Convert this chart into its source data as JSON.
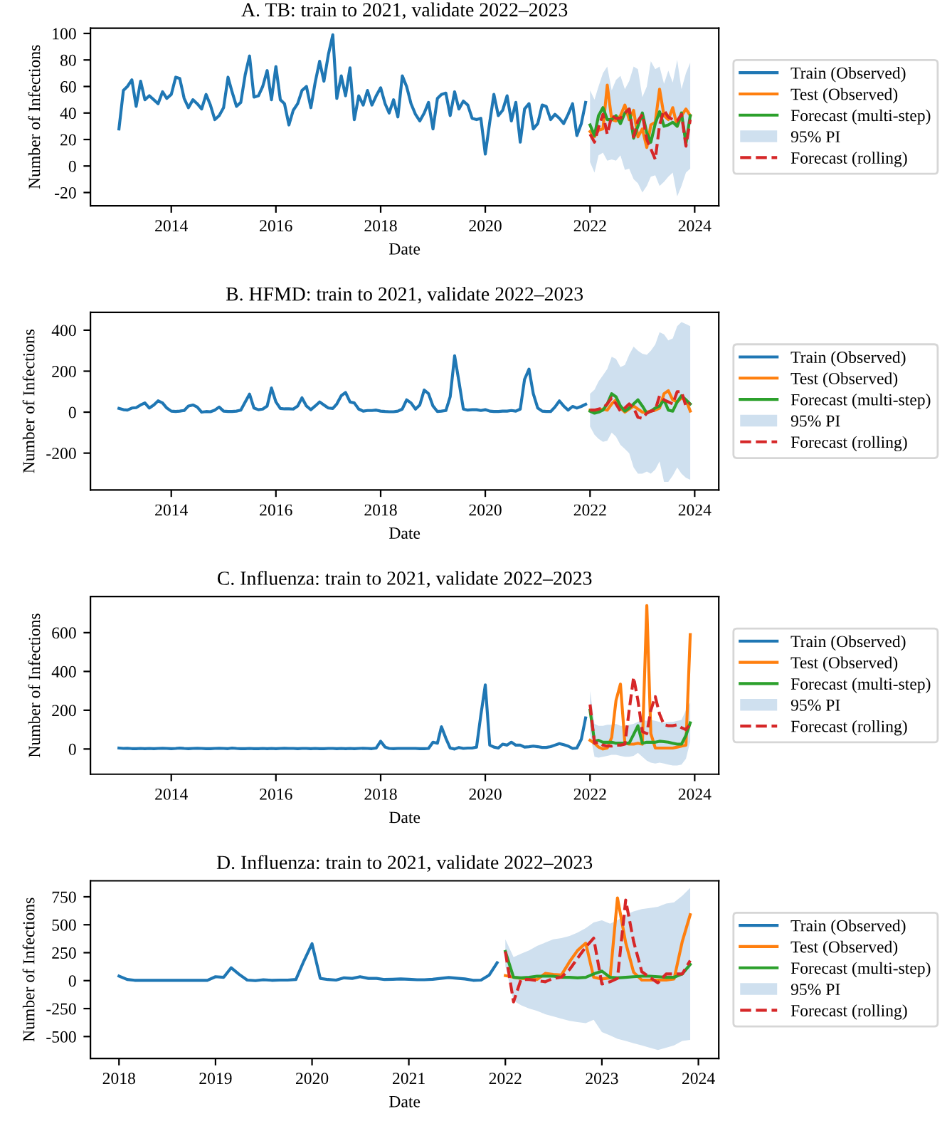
{
  "chart_data": [
    {
      "type": "line",
      "title": "A. TB: train to 2021, validate 2022–2023",
      "xlabel": "Date",
      "ylabel": "Number of Infections",
      "legend": "right",
      "grid": false,
      "xlim": [
        "2012-06-16",
        "2024-06-17"
      ],
      "xticks": [
        "2014",
        "2016",
        "2018",
        "2020",
        "2022",
        "2024"
      ],
      "ylim": [
        -30,
        104
      ],
      "yticks": [
        -20,
        0,
        20,
        40,
        60,
        80,
        100
      ],
      "x": [
        "2022-01",
        "2022-02",
        "2022-03",
        "2022-04",
        "2022-05",
        "2022-06",
        "2022-07",
        "2022-08",
        "2022-09",
        "2022-10",
        "2022-11",
        "2022-12",
        "2023-01",
        "2023-02",
        "2023-03",
        "2023-04",
        "2023-05",
        "2023-06",
        "2023-07",
        "2023-08",
        "2023-09",
        "2023-10",
        "2023-11",
        "2023-12"
      ],
      "series": [
        {
          "name": "Train (Observed)",
          "color": "#1f77b4",
          "x": [
            "2013-01",
            "2013-02",
            "2013-03",
            "2013-04",
            "2013-05",
            "2013-06",
            "2013-07",
            "2013-08",
            "2013-09",
            "2013-10",
            "2013-11",
            "2013-12",
            "2014-01",
            "2014-02",
            "2014-03",
            "2014-04",
            "2014-05",
            "2014-06",
            "2014-07",
            "2014-08",
            "2014-09",
            "2014-10",
            "2014-11",
            "2014-12",
            "2015-01",
            "2015-02",
            "2015-03",
            "2015-04",
            "2015-05",
            "2015-06",
            "2015-07",
            "2015-08",
            "2015-09",
            "2015-10",
            "2015-11",
            "2015-12",
            "2016-01",
            "2016-02",
            "2016-03",
            "2016-04",
            "2016-05",
            "2016-06",
            "2016-07",
            "2016-08",
            "2016-09",
            "2016-10",
            "2016-11",
            "2016-12",
            "2017-01",
            "2017-02",
            "2017-03",
            "2017-04",
            "2017-05",
            "2017-06",
            "2017-07",
            "2017-08",
            "2017-09",
            "2017-10",
            "2017-11",
            "2017-12",
            "2018-01",
            "2018-02",
            "2018-03",
            "2018-04",
            "2018-05",
            "2018-06",
            "2018-07",
            "2018-08",
            "2018-09",
            "2018-10",
            "2018-11",
            "2018-12",
            "2019-01",
            "2019-02",
            "2019-03",
            "2019-04",
            "2019-05",
            "2019-06",
            "2019-07",
            "2019-08",
            "2019-09",
            "2019-10",
            "2019-11",
            "2019-12",
            "2020-01",
            "2020-02",
            "2020-03",
            "2020-04",
            "2020-05",
            "2020-06",
            "2020-07",
            "2020-08",
            "2020-09",
            "2020-10",
            "2020-11",
            "2020-12",
            "2021-01",
            "2021-02",
            "2021-03",
            "2021-04",
            "2021-05",
            "2021-06",
            "2021-07",
            "2021-08",
            "2021-09",
            "2021-10",
            "2021-11",
            "2021-12"
          ],
          "values": [
            28,
            57,
            60,
            65,
            45,
            64,
            50,
            53,
            50,
            47,
            56,
            51,
            54,
            67,
            66,
            51,
            44,
            50,
            47,
            43,
            54,
            46,
            35,
            38,
            44,
            67,
            56,
            45,
            48,
            69,
            83,
            52,
            53,
            60,
            72,
            50,
            75,
            50,
            47,
            31,
            42,
            47,
            57,
            60,
            44,
            63,
            79,
            64,
            84,
            99,
            51,
            68,
            53,
            74,
            35,
            53,
            46,
            57,
            46,
            53,
            59,
            47,
            40,
            50,
            37,
            68,
            60,
            47,
            39,
            34,
            40,
            48,
            28,
            51,
            54,
            55,
            38,
            56,
            43,
            49,
            46,
            36,
            35,
            36,
            9,
            33,
            54,
            38,
            42,
            53,
            34,
            48,
            18,
            43,
            47,
            28,
            32,
            46,
            45,
            35,
            39,
            36,
            32,
            39,
            47,
            23,
            32,
            48
          ]
        },
        {
          "name": "Test (Observed)",
          "color": "#ff7f0e",
          "values": [
            26,
            22,
            27,
            28,
            61,
            35,
            34,
            38,
            46,
            35,
            42,
            22,
            28,
            14,
            31,
            33,
            58,
            38,
            35,
            44,
            30,
            38,
            43,
            38
          ]
        },
        {
          "name": "Forecast (multi-step)",
          "color": "#2ca02c",
          "values": [
            31,
            23,
            38,
            44,
            35,
            35,
            38,
            32,
            40,
            43,
            21,
            30,
            40,
            25,
            18,
            32,
            41,
            30,
            31,
            33,
            30,
            40,
            17,
            38
          ]
        },
        {
          "name": "95% PI",
          "type": "area",
          "color": "#cfe0ef",
          "values": [
            null,
            null,
            null,
            null,
            null,
            null,
            null,
            null,
            null,
            null,
            null,
            null,
            null,
            null,
            null,
            null,
            null,
            null,
            null,
            null,
            null,
            null,
            null,
            null
          ],
          "lower": [
            3,
            -5,
            8,
            10,
            4,
            5,
            4,
            8,
            -3,
            -2,
            -10,
            -13,
            -20,
            -15,
            -8,
            -7,
            -15,
            -12,
            -8,
            -5,
            -23,
            -15,
            -5,
            -2
          ],
          "upper": [
            57,
            50,
            60,
            70,
            75,
            57,
            65,
            68,
            58,
            64,
            75,
            73,
            52,
            60,
            79,
            73,
            75,
            62,
            72,
            63,
            80,
            58,
            70,
            78
          ]
        },
        {
          "name": "Forecast (rolling)",
          "color": "#d62728",
          "line_style": "dashed",
          "values": [
            24,
            18,
            29,
            39,
            24,
            38,
            36,
            36,
            40,
            43,
            22,
            34,
            39,
            20,
            13,
            5,
            31,
            42,
            37,
            35,
            34,
            39,
            15,
            35
          ]
        }
      ]
    },
    {
      "type": "line",
      "title": "B. HFMD: train to 2021, validate 2022–2023",
      "xlabel": "Date",
      "ylabel": "Number of Infections",
      "legend": "right",
      "grid": false,
      "xlim": [
        "2012-06-16",
        "2024-06-17"
      ],
      "xticks": [
        "2014",
        "2016",
        "2018",
        "2020",
        "2022",
        "2024"
      ],
      "ylim": [
        -380,
        487
      ],
      "yticks": [
        -200,
        0,
        200,
        400
      ],
      "x": [
        "2022-01",
        "2022-02",
        "2022-03",
        "2022-04",
        "2022-05",
        "2022-06",
        "2022-07",
        "2022-08",
        "2022-09",
        "2022-10",
        "2022-11",
        "2022-12",
        "2023-01",
        "2023-02",
        "2023-03",
        "2023-04",
        "2023-05",
        "2023-06",
        "2023-07",
        "2023-08",
        "2023-09",
        "2023-10",
        "2023-11",
        "2023-12"
      ],
      "series": [
        {
          "name": "Train (Observed)",
          "color": "#1f77b4",
          "x": [
            "2013-01",
            "2013-02",
            "2013-03",
            "2013-04",
            "2013-05",
            "2013-06",
            "2013-07",
            "2013-08",
            "2013-09",
            "2013-10",
            "2013-11",
            "2013-12",
            "2014-01",
            "2014-02",
            "2014-03",
            "2014-04",
            "2014-05",
            "2014-06",
            "2014-07",
            "2014-08",
            "2014-09",
            "2014-10",
            "2014-11",
            "2014-12",
            "2015-01",
            "2015-02",
            "2015-03",
            "2015-04",
            "2015-05",
            "2015-06",
            "2015-07",
            "2015-08",
            "2015-09",
            "2015-10",
            "2015-11",
            "2015-12",
            "2016-01",
            "2016-02",
            "2016-03",
            "2016-04",
            "2016-05",
            "2016-06",
            "2016-07",
            "2016-08",
            "2016-09",
            "2016-10",
            "2016-11",
            "2016-12",
            "2017-01",
            "2017-02",
            "2017-03",
            "2017-04",
            "2017-05",
            "2017-06",
            "2017-07",
            "2017-08",
            "2017-09",
            "2017-10",
            "2017-11",
            "2017-12",
            "2018-01",
            "2018-02",
            "2018-03",
            "2018-04",
            "2018-05",
            "2018-06",
            "2018-07",
            "2018-08",
            "2018-09",
            "2018-10",
            "2018-11",
            "2018-12",
            "2019-01",
            "2019-02",
            "2019-03",
            "2019-04",
            "2019-05",
            "2019-06",
            "2019-07",
            "2019-08",
            "2019-09",
            "2019-10",
            "2019-11",
            "2019-12",
            "2020-01",
            "2020-02",
            "2020-03",
            "2020-04",
            "2020-05",
            "2020-06",
            "2020-07",
            "2020-08",
            "2020-09",
            "2020-10",
            "2020-11",
            "2020-12",
            "2021-01",
            "2021-02",
            "2021-03",
            "2021-04",
            "2021-05",
            "2021-06",
            "2021-07",
            "2021-08",
            "2021-09",
            "2021-10",
            "2021-11",
            "2021-12"
          ],
          "values": [
            18,
            12,
            10,
            20,
            22,
            35,
            45,
            20,
            35,
            55,
            45,
            20,
            5,
            3,
            5,
            8,
            30,
            35,
            25,
            0,
            3,
            2,
            10,
            25,
            5,
            3,
            3,
            5,
            10,
            50,
            88,
            20,
            12,
            15,
            30,
            118,
            50,
            18,
            16,
            16,
            15,
            30,
            70,
            30,
            12,
            30,
            50,
            35,
            20,
            18,
            40,
            80,
            96,
            50,
            45,
            15,
            5,
            8,
            8,
            10,
            5,
            3,
            2,
            2,
            5,
            15,
            60,
            45,
            15,
            35,
            108,
            90,
            30,
            3,
            5,
            8,
            75,
            275,
            150,
            15,
            10,
            12,
            12,
            8,
            12,
            5,
            3,
            3,
            5,
            5,
            8,
            5,
            15,
            160,
            210,
            90,
            20,
            5,
            3,
            3,
            25,
            55,
            30,
            10,
            28,
            20,
            28,
            38
          ]
        },
        {
          "name": "Test (Observed)",
          "color": "#ff7f0e",
          "values": [
            10,
            5,
            8,
            15,
            10,
            40,
            60,
            20,
            0,
            15,
            30,
            15,
            0,
            0,
            5,
            10,
            20,
            90,
            105,
            60,
            50,
            70,
            60,
            5
          ]
        },
        {
          "name": "Forecast (multi-step)",
          "color": "#2ca02c",
          "values": [
            5,
            -5,
            0,
            10,
            40,
            90,
            75,
            30,
            5,
            20,
            40,
            60,
            30,
            -5,
            5,
            20,
            30,
            60,
            10,
            5,
            50,
            80,
            60,
            40
          ]
        },
        {
          "name": "95% PI",
          "type": "area",
          "color": "#cfe0ef",
          "values": [
            null,
            null,
            null,
            null,
            null,
            null,
            null,
            null,
            null,
            null,
            null,
            null,
            null,
            null,
            null,
            null,
            null,
            null,
            null,
            null,
            null,
            null,
            null,
            null
          ],
          "lower": [
            -70,
            -110,
            -130,
            -145,
            -140,
            -100,
            -120,
            -160,
            -180,
            -200,
            -270,
            -300,
            -300,
            -290,
            -300,
            -280,
            -240,
            -340,
            -340,
            -310,
            -270,
            -300,
            -320,
            -330
          ],
          "upper": [
            90,
            110,
            150,
            180,
            210,
            270,
            260,
            220,
            230,
            280,
            320,
            300,
            285,
            280,
            300,
            330,
            390,
            380,
            350,
            360,
            420,
            440,
            430,
            420
          ]
        },
        {
          "name": "Forecast (rolling)",
          "color": "#d62728",
          "line_style": "dashed",
          "values": [
            10,
            10,
            15,
            20,
            40,
            70,
            40,
            5,
            20,
            40,
            20,
            -25,
            -30,
            -5,
            5,
            10,
            80,
            60,
            50,
            40,
            100,
            100,
            30,
            45
          ]
        }
      ]
    },
    {
      "type": "line",
      "title": "C. Influenza: train to 2021, validate 2022–2023",
      "xlabel": "Date",
      "ylabel": "Number of Infections",
      "legend": "right",
      "grid": false,
      "xlim": [
        "2012-06-16",
        "2024-06-17"
      ],
      "xticks": [
        "2014",
        "2016",
        "2018",
        "2020",
        "2022",
        "2024"
      ],
      "ylim": [
        -130,
        786
      ],
      "yticks": [
        0,
        200,
        400,
        600
      ],
      "x": [
        "2022-01",
        "2022-02",
        "2022-03",
        "2022-04",
        "2022-05",
        "2022-06",
        "2022-07",
        "2022-08",
        "2022-09",
        "2022-10",
        "2022-11",
        "2022-12",
        "2023-01",
        "2023-02",
        "2023-03",
        "2023-04",
        "2023-05",
        "2023-06",
        "2023-07",
        "2023-08",
        "2023-09",
        "2023-10",
        "2023-11",
        "2023-12"
      ],
      "series": [
        {
          "name": "Train (Observed)",
          "color": "#1f77b4",
          "x": [
            "2013-01",
            "2013-02",
            "2013-03",
            "2013-04",
            "2013-05",
            "2013-06",
            "2013-07",
            "2013-08",
            "2013-09",
            "2013-10",
            "2013-11",
            "2013-12",
            "2014-01",
            "2014-02",
            "2014-03",
            "2014-04",
            "2014-05",
            "2014-06",
            "2014-07",
            "2014-08",
            "2014-09",
            "2014-10",
            "2014-11",
            "2014-12",
            "2015-01",
            "2015-02",
            "2015-03",
            "2015-04",
            "2015-05",
            "2015-06",
            "2015-07",
            "2015-08",
            "2015-09",
            "2015-10",
            "2015-11",
            "2015-12",
            "2016-01",
            "2016-02",
            "2016-03",
            "2016-04",
            "2016-05",
            "2016-06",
            "2016-07",
            "2016-08",
            "2016-09",
            "2016-10",
            "2016-11",
            "2016-12",
            "2017-01",
            "2017-02",
            "2017-03",
            "2017-04",
            "2017-05",
            "2017-06",
            "2017-07",
            "2017-08",
            "2017-09",
            "2017-10",
            "2017-11",
            "2017-12",
            "2018-01",
            "2018-02",
            "2018-03",
            "2018-04",
            "2018-05",
            "2018-06",
            "2018-07",
            "2018-08",
            "2018-09",
            "2018-10",
            "2018-11",
            "2018-12",
            "2019-01",
            "2019-02",
            "2019-03",
            "2019-04",
            "2019-05",
            "2019-06",
            "2019-07",
            "2019-08",
            "2019-09",
            "2019-10",
            "2019-11",
            "2019-12",
            "2020-01",
            "2020-02",
            "2020-03",
            "2020-04",
            "2020-05",
            "2020-06",
            "2020-07",
            "2020-08",
            "2020-09",
            "2020-10",
            "2020-11",
            "2020-12",
            "2021-01",
            "2021-02",
            "2021-03",
            "2021-04",
            "2021-05",
            "2021-06",
            "2021-07",
            "2021-08",
            "2021-09",
            "2021-10",
            "2021-11",
            "2021-12"
          ],
          "values": [
            5,
            3,
            4,
            2,
            2,
            3,
            2,
            3,
            2,
            3,
            4,
            3,
            2,
            3,
            5,
            3,
            2,
            3,
            4,
            3,
            2,
            2,
            3,
            4,
            3,
            2,
            5,
            3,
            2,
            2,
            3,
            2,
            2,
            3,
            2,
            3,
            2,
            3,
            4,
            3,
            3,
            2,
            3,
            3,
            2,
            3,
            2,
            2,
            3,
            3,
            2,
            3,
            2,
            3,
            2,
            3,
            4,
            3,
            2,
            5,
            40,
            10,
            3,
            2,
            3,
            3,
            3,
            3,
            3,
            2,
            2,
            3,
            35,
            30,
            115,
            55,
            5,
            0,
            8,
            3,
            5,
            5,
            10,
            175,
            330,
            20,
            10,
            5,
            25,
            20,
            35,
            20,
            20,
            10,
            12,
            15,
            12,
            8,
            8,
            12,
            20,
            28,
            22,
            15,
            3,
            5,
            50,
            160
          ]
        },
        {
          "name": "Test (Observed)",
          "color": "#ff7f0e",
          "values": [
            45,
            30,
            10,
            0,
            5,
            60,
            250,
            335,
            30,
            25,
            25,
            30,
            25,
            740,
            80,
            5,
            5,
            5,
            5,
            5,
            10,
            15,
            20,
            590
          ]
        },
        {
          "name": "Forecast (multi-step)",
          "color": "#2ca02c",
          "values": [
            200,
            40,
            45,
            35,
            35,
            35,
            30,
            30,
            30,
            30,
            75,
            120,
            30,
            35,
            35,
            35,
            40,
            38,
            35,
            30,
            25,
            25,
            70,
            135
          ]
        },
        {
          "name": "95% PI",
          "type": "area",
          "color": "#cfe0ef",
          "values": [
            null,
            null,
            null,
            null,
            null,
            null,
            null,
            null,
            null,
            null,
            null,
            null,
            null,
            null,
            null,
            null,
            null,
            null,
            null,
            null,
            null,
            null,
            null,
            null
          ],
          "lower": [
            80,
            -40,
            -45,
            -40,
            -35,
            -30,
            -30,
            -35,
            -40,
            -40,
            -35,
            -20,
            -40,
            -60,
            -70,
            -75,
            -70,
            -75,
            -80,
            -85,
            -85,
            -80,
            -50,
            40
          ],
          "upper": [
            300,
            130,
            120,
            120,
            125,
            125,
            130,
            120,
            120,
            125,
            130,
            140,
            150,
            145,
            150,
            145,
            140,
            135,
            140,
            140,
            145,
            150,
            200,
            240
          ]
        },
        {
          "name": "Forecast (rolling)",
          "color": "#d62728",
          "line_style": "dashed",
          "values": [
            230,
            30,
            35,
            20,
            15,
            15,
            20,
            20,
            25,
            200,
            370,
            250,
            90,
            80,
            200,
            270,
            180,
            125,
            120,
            120,
            125,
            110,
            100,
            130
          ]
        }
      ]
    },
    {
      "type": "line",
      "title": "D. Influenza: train to 2021, validate 2022–2023",
      "xlabel": "Date",
      "ylabel": "Number of Infections",
      "legend": "right",
      "grid": false,
      "xlim": [
        "2017-09-15",
        "2024-03-18"
      ],
      "xticks": [
        "2018",
        "2019",
        "2020",
        "2021",
        "2022",
        "2023",
        "2024"
      ],
      "ylim": [
        -696,
        893
      ],
      "yticks": [
        -500,
        -250,
        0,
        250,
        500,
        750
      ],
      "x": [
        "2022-01",
        "2022-02",
        "2022-03",
        "2022-04",
        "2022-05",
        "2022-06",
        "2022-07",
        "2022-08",
        "2022-09",
        "2022-10",
        "2022-11",
        "2022-12",
        "2023-01",
        "2023-02",
        "2023-03",
        "2023-04",
        "2023-05",
        "2023-06",
        "2023-07",
        "2023-08",
        "2023-09",
        "2023-10",
        "2023-11",
        "2023-12"
      ],
      "series": [
        {
          "name": "Train (Observed)",
          "color": "#1f77b4",
          "x": [
            "2018-01",
            "2018-02",
            "2018-03",
            "2018-04",
            "2018-05",
            "2018-06",
            "2018-07",
            "2018-08",
            "2018-09",
            "2018-10",
            "2018-11",
            "2018-12",
            "2019-01",
            "2019-02",
            "2019-03",
            "2019-04",
            "2019-05",
            "2019-06",
            "2019-07",
            "2019-08",
            "2019-09",
            "2019-10",
            "2019-11",
            "2019-12",
            "2020-01",
            "2020-02",
            "2020-03",
            "2020-04",
            "2020-05",
            "2020-06",
            "2020-07",
            "2020-08",
            "2020-09",
            "2020-10",
            "2020-11",
            "2020-12",
            "2021-01",
            "2021-02",
            "2021-03",
            "2021-04",
            "2021-05",
            "2021-06",
            "2021-07",
            "2021-08",
            "2021-09",
            "2021-10",
            "2021-11",
            "2021-12"
          ],
          "values": [
            40,
            10,
            3,
            2,
            3,
            3,
            3,
            3,
            3,
            2,
            2,
            3,
            35,
            30,
            115,
            55,
            5,
            0,
            8,
            3,
            5,
            5,
            10,
            175,
            330,
            20,
            10,
            5,
            25,
            20,
            35,
            20,
            20,
            10,
            12,
            15,
            12,
            8,
            8,
            12,
            20,
            28,
            22,
            15,
            3,
            5,
            50,
            160
          ]
        },
        {
          "name": "Test (Observed)",
          "color": "#ff7f0e",
          "values": [
            45,
            30,
            20,
            15,
            10,
            65,
            55,
            50,
            170,
            270,
            335,
            30,
            15,
            25,
            740,
            340,
            75,
            5,
            5,
            5,
            5,
            15,
            350,
            590
          ]
        },
        {
          "name": "Forecast (multi-step)",
          "color": "#2ca02c",
          "values": [
            260,
            30,
            25,
            30,
            40,
            40,
            40,
            30,
            30,
            25,
            30,
            60,
            85,
            30,
            25,
            30,
            35,
            40,
            40,
            35,
            30,
            30,
            60,
            145
          ]
        },
        {
          "name": "95% PI",
          "type": "area",
          "color": "#cfe0ef",
          "values": [
            null,
            null,
            null,
            null,
            null,
            null,
            null,
            null,
            null,
            null,
            null,
            null,
            null,
            null,
            null,
            null,
            null,
            null,
            null,
            null,
            null,
            null,
            null,
            null
          ],
          "lower": [
            130,
            -180,
            -220,
            -250,
            -270,
            -300,
            -320,
            -340,
            -360,
            -370,
            -380,
            -350,
            -460,
            -490,
            -520,
            -540,
            -560,
            -580,
            -600,
            -620,
            -600,
            -580,
            -540,
            -530
          ],
          "upper": [
            370,
            210,
            240,
            270,
            310,
            340,
            370,
            380,
            400,
            430,
            470,
            520,
            540,
            510,
            540,
            590,
            620,
            640,
            650,
            660,
            690,
            700,
            760,
            830
          ]
        },
        {
          "name": "Forecast (rolling)",
          "color": "#d62728",
          "line_style": "dashed",
          "values": [
            260,
            -190,
            10,
            10,
            0,
            -10,
            20,
            30,
            100,
            200,
            300,
            380,
            -30,
            -10,
            20,
            720,
            350,
            80,
            30,
            -20,
            60,
            60,
            60,
            180
          ]
        }
      ]
    }
  ]
}
